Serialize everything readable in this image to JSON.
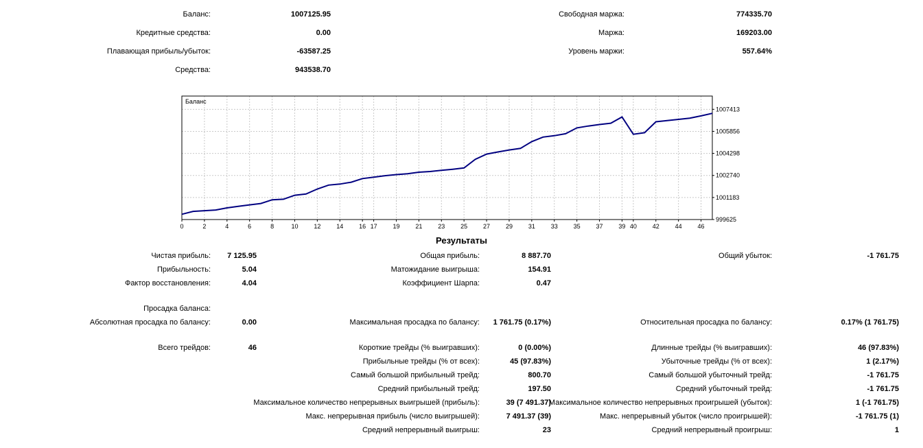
{
  "summary": {
    "balance_label": "Баланс:",
    "balance_value": "1007125.95",
    "credit_label": "Кредитные средства:",
    "credit_value": "0.00",
    "floating_label": "Плавающая прибыль/убыток:",
    "floating_value": "-63587.25",
    "equity_label": "Средства:",
    "equity_value": "943538.70",
    "free_margin_label": "Свободная маржа:",
    "free_margin_value": "774335.70",
    "margin_label": "Маржа:",
    "margin_value": "169203.00",
    "margin_level_label": "Уровень маржи:",
    "margin_level_value": "557.64%"
  },
  "chart_data": {
    "type": "line",
    "title": "Баланс",
    "xlabel": "",
    "ylabel": "",
    "xlim": [
      0,
      47
    ],
    "ylim": [
      999625,
      1008350
    ],
    "x_ticks": [
      0,
      2,
      4,
      6,
      8,
      10,
      12,
      14,
      16,
      17,
      19,
      21,
      23,
      25,
      27,
      29,
      31,
      33,
      35,
      37,
      39,
      40,
      42,
      44,
      46
    ],
    "y_ticks": [
      1007413,
      1005856,
      1004298,
      1002740,
      1001183,
      999625
    ],
    "grid": true,
    "line_color": "#000080",
    "series": [
      {
        "name": "Баланс",
        "x": [
          0,
          1,
          2,
          3,
          4,
          5,
          6,
          7,
          8,
          9,
          10,
          11,
          12,
          13,
          14,
          15,
          16,
          17,
          18,
          19,
          20,
          21,
          22,
          23,
          24,
          25,
          26,
          27,
          28,
          29,
          30,
          31,
          32,
          33,
          34,
          35,
          36,
          37,
          38,
          39,
          40,
          41,
          42,
          43,
          44,
          45,
          46,
          47
        ],
        "values": [
          1000000,
          1000200,
          1000250,
          1000300,
          1000450,
          1000560,
          1000660,
          1000760,
          1001020,
          1001060,
          1001340,
          1001430,
          1001780,
          1002060,
          1002130,
          1002260,
          1002520,
          1002620,
          1002720,
          1002800,
          1002860,
          1002970,
          1003020,
          1003100,
          1003180,
          1003270,
          1003880,
          1004250,
          1004400,
          1004540,
          1004650,
          1005130,
          1005450,
          1005550,
          1005690,
          1006100,
          1006230,
          1006340,
          1006430,
          1006870,
          1005650,
          1005760,
          1006530,
          1006620,
          1006700,
          1006790,
          1006950,
          1007130
        ]
      }
    ]
  },
  "results": {
    "title": "Результаты",
    "net_profit_label": "Чистая прибыль:",
    "net_profit_value": "7 125.95",
    "gross_profit_label": "Общая прибыль:",
    "gross_profit_value": "8 887.70",
    "gross_loss_label": "Общий убыток:",
    "gross_loss_value": "-1 761.75",
    "profit_factor_label": "Прибыльность:",
    "profit_factor_value": "5.04",
    "expected_payoff_label": "Матожидание выигрыша:",
    "expected_payoff_value": "154.91",
    "recovery_factor_label": "Фактор восстановления:",
    "recovery_factor_value": "4.04",
    "sharpe_label": "Коэффициент Шарпа:",
    "sharpe_value": "0.47",
    "drawdown_header": "Просадка баланса:",
    "abs_dd_label": "Абсолютная просадка по балансу:",
    "abs_dd_value": "0.00",
    "max_dd_label": "Максимальная просадка по балансу:",
    "max_dd_value": "1 761.75 (0.17%)",
    "rel_dd_label": "Относительная просадка по балансу:",
    "rel_dd_value": "0.17% (1 761.75)",
    "total_trades_label": "Всего трейдов:",
    "total_trades_value": "46",
    "short_label": "Короткие трейды (% выигравших):",
    "short_value": "0 (0.00%)",
    "long_label": "Длинные трейды (% выигравших):",
    "long_value": "46 (97.83%)",
    "profit_trades_label": "Прибыльные трейды (% от всех):",
    "profit_trades_value": "45 (97.83%)",
    "loss_trades_label": "Убыточные трейды (% от всех):",
    "loss_trades_value": "1 (2.17%)",
    "largest_profit_label": "Самый большой прибыльный трейд:",
    "largest_profit_value": "800.70",
    "largest_loss_label": "Самый большой убыточный трейд:",
    "largest_loss_value": "-1 761.75",
    "avg_profit_label": "Средний прибыльный трейд:",
    "avg_profit_value": "197.50",
    "avg_loss_label": "Средний убыточный трейд:",
    "avg_loss_value": "-1 761.75",
    "max_cons_wins_label": "Максимальное количество непрерывных выигрышей (прибыль):",
    "max_cons_wins_value": "39 (7 491.37)",
    "max_cons_losses_label": "Максимальное количество непрерывных проигрышей (убыток):",
    "max_cons_losses_value": "1 (-1 761.75)",
    "max_cons_profit_label": "Макс. непрерывная прибыль (число выигрышей):",
    "max_cons_profit_value": "7 491.37 (39)",
    "max_cons_loss_label": "Макс. непрерывный убыток (число проигрышей):",
    "max_cons_loss_value": "-1 761.75 (1)",
    "avg_cons_wins_label": "Средний непрерывный выигрыш:",
    "avg_cons_wins_value": "23",
    "avg_cons_losses_label": "Средний непрерывный проигрыш:",
    "avg_cons_losses_value": "1"
  }
}
